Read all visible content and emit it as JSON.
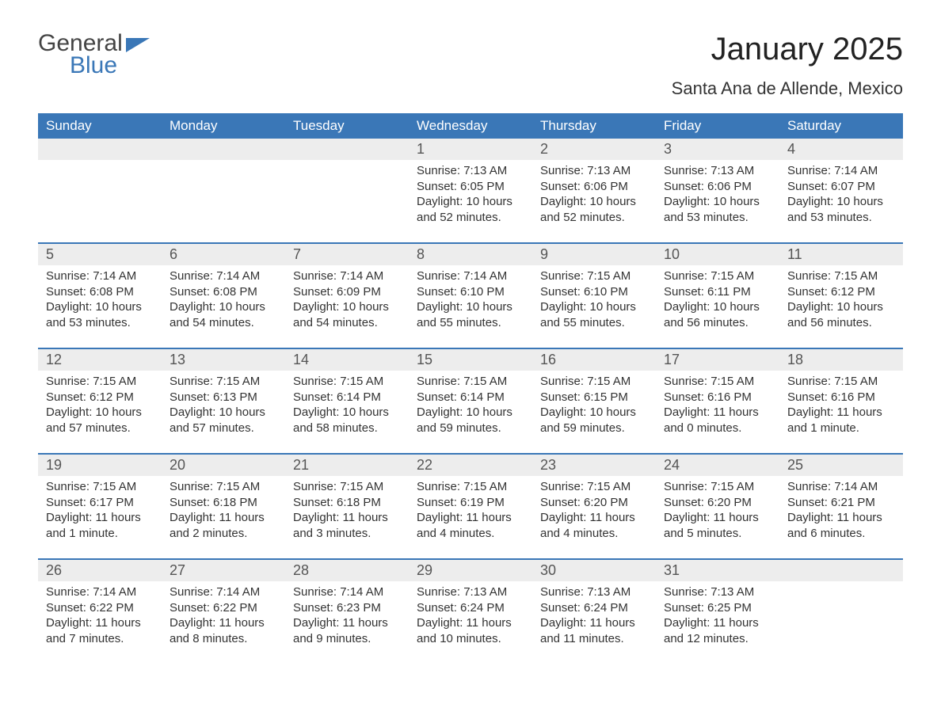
{
  "logo": {
    "word1": "General",
    "word2": "Blue"
  },
  "title": "January 2025",
  "subtitle": "Santa Ana de Allende, Mexico",
  "colors": {
    "header_bg": "#3a77b7",
    "header_text": "#ffffff",
    "daynum_bg": "#ededed",
    "border": "#3a77b7",
    "text": "#333333"
  },
  "day_names": [
    "Sunday",
    "Monday",
    "Tuesday",
    "Wednesday",
    "Thursday",
    "Friday",
    "Saturday"
  ],
  "weeks": [
    {
      "nums": [
        "",
        "",
        "",
        "1",
        "2",
        "3",
        "4"
      ],
      "cells": [
        {
          "sunrise": "",
          "sunset": "",
          "daylight": ""
        },
        {
          "sunrise": "",
          "sunset": "",
          "daylight": ""
        },
        {
          "sunrise": "",
          "sunset": "",
          "daylight": ""
        },
        {
          "sunrise": "Sunrise: 7:13 AM",
          "sunset": "Sunset: 6:05 PM",
          "daylight": "Daylight: 10 hours and 52 minutes."
        },
        {
          "sunrise": "Sunrise: 7:13 AM",
          "sunset": "Sunset: 6:06 PM",
          "daylight": "Daylight: 10 hours and 52 minutes."
        },
        {
          "sunrise": "Sunrise: 7:13 AM",
          "sunset": "Sunset: 6:06 PM",
          "daylight": "Daylight: 10 hours and 53 minutes."
        },
        {
          "sunrise": "Sunrise: 7:14 AM",
          "sunset": "Sunset: 6:07 PM",
          "daylight": "Daylight: 10 hours and 53 minutes."
        }
      ]
    },
    {
      "nums": [
        "5",
        "6",
        "7",
        "8",
        "9",
        "10",
        "11"
      ],
      "cells": [
        {
          "sunrise": "Sunrise: 7:14 AM",
          "sunset": "Sunset: 6:08 PM",
          "daylight": "Daylight: 10 hours and 53 minutes."
        },
        {
          "sunrise": "Sunrise: 7:14 AM",
          "sunset": "Sunset: 6:08 PM",
          "daylight": "Daylight: 10 hours and 54 minutes."
        },
        {
          "sunrise": "Sunrise: 7:14 AM",
          "sunset": "Sunset: 6:09 PM",
          "daylight": "Daylight: 10 hours and 54 minutes."
        },
        {
          "sunrise": "Sunrise: 7:14 AM",
          "sunset": "Sunset: 6:10 PM",
          "daylight": "Daylight: 10 hours and 55 minutes."
        },
        {
          "sunrise": "Sunrise: 7:15 AM",
          "sunset": "Sunset: 6:10 PM",
          "daylight": "Daylight: 10 hours and 55 minutes."
        },
        {
          "sunrise": "Sunrise: 7:15 AM",
          "sunset": "Sunset: 6:11 PM",
          "daylight": "Daylight: 10 hours and 56 minutes."
        },
        {
          "sunrise": "Sunrise: 7:15 AM",
          "sunset": "Sunset: 6:12 PM",
          "daylight": "Daylight: 10 hours and 56 minutes."
        }
      ]
    },
    {
      "nums": [
        "12",
        "13",
        "14",
        "15",
        "16",
        "17",
        "18"
      ],
      "cells": [
        {
          "sunrise": "Sunrise: 7:15 AM",
          "sunset": "Sunset: 6:12 PM",
          "daylight": "Daylight: 10 hours and 57 minutes."
        },
        {
          "sunrise": "Sunrise: 7:15 AM",
          "sunset": "Sunset: 6:13 PM",
          "daylight": "Daylight: 10 hours and 57 minutes."
        },
        {
          "sunrise": "Sunrise: 7:15 AM",
          "sunset": "Sunset: 6:14 PM",
          "daylight": "Daylight: 10 hours and 58 minutes."
        },
        {
          "sunrise": "Sunrise: 7:15 AM",
          "sunset": "Sunset: 6:14 PM",
          "daylight": "Daylight: 10 hours and 59 minutes."
        },
        {
          "sunrise": "Sunrise: 7:15 AM",
          "sunset": "Sunset: 6:15 PM",
          "daylight": "Daylight: 10 hours and 59 minutes."
        },
        {
          "sunrise": "Sunrise: 7:15 AM",
          "sunset": "Sunset: 6:16 PM",
          "daylight": "Daylight: 11 hours and 0 minutes."
        },
        {
          "sunrise": "Sunrise: 7:15 AM",
          "sunset": "Sunset: 6:16 PM",
          "daylight": "Daylight: 11 hours and 1 minute."
        }
      ]
    },
    {
      "nums": [
        "19",
        "20",
        "21",
        "22",
        "23",
        "24",
        "25"
      ],
      "cells": [
        {
          "sunrise": "Sunrise: 7:15 AM",
          "sunset": "Sunset: 6:17 PM",
          "daylight": "Daylight: 11 hours and 1 minute."
        },
        {
          "sunrise": "Sunrise: 7:15 AM",
          "sunset": "Sunset: 6:18 PM",
          "daylight": "Daylight: 11 hours and 2 minutes."
        },
        {
          "sunrise": "Sunrise: 7:15 AM",
          "sunset": "Sunset: 6:18 PM",
          "daylight": "Daylight: 11 hours and 3 minutes."
        },
        {
          "sunrise": "Sunrise: 7:15 AM",
          "sunset": "Sunset: 6:19 PM",
          "daylight": "Daylight: 11 hours and 4 minutes."
        },
        {
          "sunrise": "Sunrise: 7:15 AM",
          "sunset": "Sunset: 6:20 PM",
          "daylight": "Daylight: 11 hours and 4 minutes."
        },
        {
          "sunrise": "Sunrise: 7:15 AM",
          "sunset": "Sunset: 6:20 PM",
          "daylight": "Daylight: 11 hours and 5 minutes."
        },
        {
          "sunrise": "Sunrise: 7:14 AM",
          "sunset": "Sunset: 6:21 PM",
          "daylight": "Daylight: 11 hours and 6 minutes."
        }
      ]
    },
    {
      "nums": [
        "26",
        "27",
        "28",
        "29",
        "30",
        "31",
        ""
      ],
      "cells": [
        {
          "sunrise": "Sunrise: 7:14 AM",
          "sunset": "Sunset: 6:22 PM",
          "daylight": "Daylight: 11 hours and 7 minutes."
        },
        {
          "sunrise": "Sunrise: 7:14 AM",
          "sunset": "Sunset: 6:22 PM",
          "daylight": "Daylight: 11 hours and 8 minutes."
        },
        {
          "sunrise": "Sunrise: 7:14 AM",
          "sunset": "Sunset: 6:23 PM",
          "daylight": "Daylight: 11 hours and 9 minutes."
        },
        {
          "sunrise": "Sunrise: 7:13 AM",
          "sunset": "Sunset: 6:24 PM",
          "daylight": "Daylight: 11 hours and 10 minutes."
        },
        {
          "sunrise": "Sunrise: 7:13 AM",
          "sunset": "Sunset: 6:24 PM",
          "daylight": "Daylight: 11 hours and 11 minutes."
        },
        {
          "sunrise": "Sunrise: 7:13 AM",
          "sunset": "Sunset: 6:25 PM",
          "daylight": "Daylight: 11 hours and 12 minutes."
        },
        {
          "sunrise": "",
          "sunset": "",
          "daylight": ""
        }
      ]
    }
  ]
}
